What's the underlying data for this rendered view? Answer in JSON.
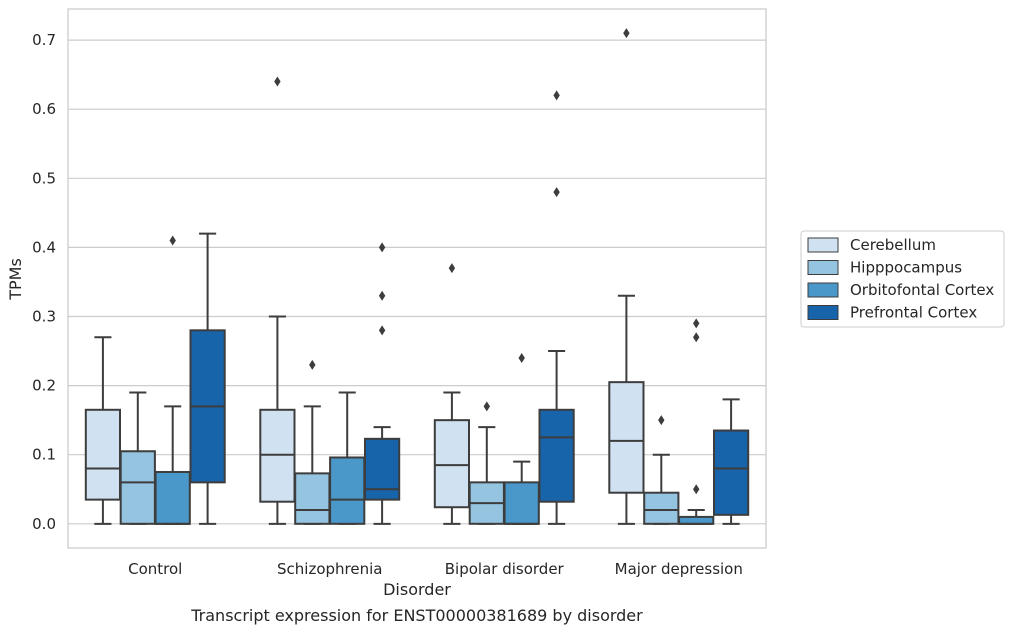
{
  "caption": "Transcript expression for ENST00000381689 by disorder",
  "chart_data": {
    "type": "box",
    "xlabel": "Disorder",
    "ylabel": "TPMs",
    "ylim": [
      -0.035,
      0.745
    ],
    "y_ticks": [
      "0.0",
      "0.1",
      "0.2",
      "0.3",
      "0.4",
      "0.5",
      "0.6",
      "0.7"
    ],
    "grid": "horizontal",
    "legend_position": "right",
    "categories": [
      "Control",
      "Schizophrenia",
      "Bipolar disorder",
      "Major depression"
    ],
    "series": [
      {
        "name": "Cerebellum",
        "color": "#d0e1f2",
        "boxes": [
          {
            "whislo": 0.0,
            "q1": 0.035,
            "med": 0.08,
            "q3": 0.165,
            "whishi": 0.27,
            "fliers": []
          },
          {
            "whislo": 0.0,
            "q1": 0.032,
            "med": 0.1,
            "q3": 0.165,
            "whishi": 0.3,
            "fliers": [
              0.64
            ]
          },
          {
            "whislo": 0.0,
            "q1": 0.024,
            "med": 0.085,
            "q3": 0.15,
            "whishi": 0.19,
            "fliers": [
              0.37
            ]
          },
          {
            "whislo": 0.0,
            "q1": 0.045,
            "med": 0.12,
            "q3": 0.205,
            "whishi": 0.33,
            "fliers": [
              0.71
            ]
          }
        ]
      },
      {
        "name": "Hipppocampus",
        "color": "#94c4df",
        "boxes": [
          {
            "whislo": 0.0,
            "q1": 0.0,
            "med": 0.06,
            "q3": 0.105,
            "whishi": 0.19,
            "fliers": []
          },
          {
            "whislo": 0.0,
            "q1": 0.0,
            "med": 0.02,
            "q3": 0.073,
            "whishi": 0.17,
            "fliers": [
              0.23
            ]
          },
          {
            "whislo": 0.0,
            "q1": 0.0,
            "med": 0.03,
            "q3": 0.06,
            "whishi": 0.14,
            "fliers": [
              0.17
            ]
          },
          {
            "whislo": 0.0,
            "q1": 0.0,
            "med": 0.02,
            "q3": 0.045,
            "whishi": 0.1,
            "fliers": [
              0.15
            ]
          }
        ]
      },
      {
        "name": "Orbitofontal Cortex",
        "color": "#4a98c9",
        "boxes": [
          {
            "whislo": 0.0,
            "q1": 0.0,
            "med": 0.0,
            "q3": 0.075,
            "whishi": 0.17,
            "fliers": [
              0.41
            ]
          },
          {
            "whislo": 0.0,
            "q1": 0.0,
            "med": 0.035,
            "q3": 0.096,
            "whishi": 0.19,
            "fliers": []
          },
          {
            "whislo": 0.0,
            "q1": 0.0,
            "med": 0.0,
            "q3": 0.06,
            "whishi": 0.09,
            "fliers": [
              0.24
            ]
          },
          {
            "whislo": 0.0,
            "q1": 0.0,
            "med": 0.0,
            "q3": 0.01,
            "whishi": 0.02,
            "fliers": [
              0.05,
              0.27,
              0.29
            ]
          }
        ]
      },
      {
        "name": "Prefrontal Cortex",
        "color": "#1764ab",
        "boxes": [
          {
            "whislo": 0.0,
            "q1": 0.06,
            "med": 0.17,
            "q3": 0.28,
            "whishi": 0.42,
            "fliers": []
          },
          {
            "whislo": 0.0,
            "q1": 0.035,
            "med": 0.05,
            "q3": 0.123,
            "whishi": 0.14,
            "fliers": [
              0.28,
              0.33,
              0.4
            ]
          },
          {
            "whislo": 0.0,
            "q1": 0.032,
            "med": 0.125,
            "q3": 0.165,
            "whishi": 0.25,
            "fliers": [
              0.48,
              0.62
            ]
          },
          {
            "whislo": 0.0,
            "q1": 0.013,
            "med": 0.08,
            "q3": 0.135,
            "whishi": 0.18,
            "fliers": []
          }
        ]
      }
    ]
  }
}
